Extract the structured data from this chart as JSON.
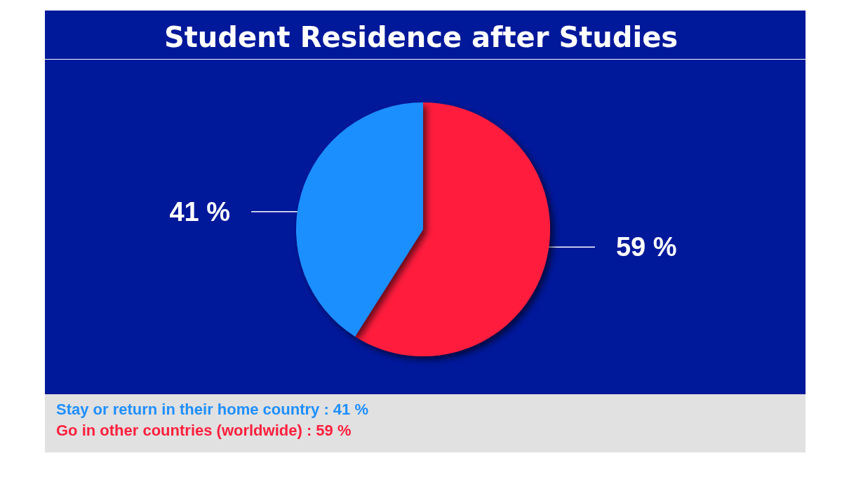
{
  "chart_data": {
    "type": "pie",
    "title": "Student Residence after Studies",
    "categories": [
      "Go in other countries (worldwide)",
      "Stay or return in their home country"
    ],
    "values": [
      59,
      41
    ],
    "colors": [
      "#ff1f3d",
      "#1e8fff"
    ],
    "value_labels": [
      "59 %",
      "41 %"
    ]
  }
}
